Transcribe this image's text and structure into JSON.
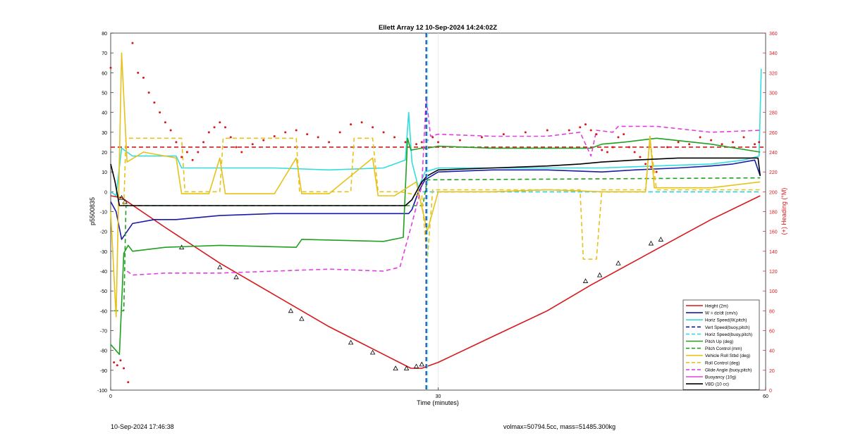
{
  "footer": {
    "timestamp": "10-Sep-2024 17:46:38",
    "summary": "volmax=50794.5cc, mass=51485.300kg"
  },
  "chart_data": {
    "type": "line",
    "title": "Ellett Array 12 10-Sep-2024 14:24:02Z",
    "xlabel": "Time (minutes)",
    "ylabel": "p5500835",
    "y2label": "(+) Heading (°M)",
    "xlim": [
      0,
      60
    ],
    "ylim": [
      -100,
      80
    ],
    "y2lim": [
      0,
      360
    ],
    "xticks": [
      0,
      30,
      60
    ],
    "yticks": [
      -100,
      -90,
      -80,
      -70,
      -60,
      -50,
      -40,
      -30,
      -20,
      -10,
      0,
      10,
      20,
      30,
      40,
      50,
      60,
      70,
      80
    ],
    "y2ticks": [
      0,
      20,
      40,
      60,
      80,
      100,
      120,
      140,
      160,
      180,
      200,
      220,
      240,
      260,
      280,
      300,
      320,
      340,
      360
    ],
    "grid": "vertical at x=30",
    "legend_position": "bottom-right",
    "legend": [
      {
        "label": "Height (2m)",
        "color": "#d7191c",
        "style": "solid"
      },
      {
        "label": "W = dz/dt (cm/s)",
        "color": "#1a1aa8",
        "style": "solid"
      },
      {
        "label": "Horiz Speed(W,pitch)",
        "color": "#33dddd",
        "style": "solid"
      },
      {
        "label": "Vert Speed(buoy,pitch)",
        "color": "#1a1aa8",
        "style": "dashed"
      },
      {
        "label": "Horiz Speed(buoy,pitch)",
        "color": "#33dddd",
        "style": "dashed"
      },
      {
        "label": "Pitch Up (deg)",
        "color": "#20a020",
        "style": "solid"
      },
      {
        "label": "Pitch Control (mm)",
        "color": "#20a020",
        "style": "dashed"
      },
      {
        "label": "Vehicle Roll Stbd (deg)",
        "color": "#e6c21a",
        "style": "solid"
      },
      {
        "label": "Roll Control (deg)",
        "color": "#e6c21a",
        "style": "dashed"
      },
      {
        "label": "Glide Angle (buoy,pitch)",
        "color": "#e040e0",
        "style": "dashed"
      },
      {
        "label": "Buoyancy (10g)",
        "color": "#e040e0",
        "style": "solid"
      },
      {
        "label": "VBD (10 cc)",
        "color": "#000000",
        "style": "solid"
      }
    ],
    "vertical_lines": [
      {
        "x": 28.9,
        "color": "#1a1aa8",
        "style": "dashed"
      },
      {
        "x": 28.9,
        "color": "#33dddd",
        "style": "dashed"
      }
    ],
    "heading_reference": {
      "y2": 245,
      "color": "#d7191c",
      "style": "dashed"
    },
    "series": [
      {
        "name": "Height (2m)",
        "color": "#d7191c",
        "style": "solid",
        "x": [
          0,
          1,
          5,
          10,
          15,
          20,
          25,
          27.5,
          28.5,
          30,
          35,
          40,
          44,
          48,
          52,
          55,
          59.5
        ],
        "y": [
          -2,
          -3,
          -18,
          -36,
          -52,
          -68,
          -82,
          -89,
          -89,
          -86,
          -73,
          -60,
          -47,
          -35,
          -23,
          -14,
          -2
        ]
      },
      {
        "name": "Height markers",
        "color": "#d7191c",
        "marker": "triangle",
        "x": [
          1,
          1.3,
          6.5,
          10,
          11.5,
          16.5,
          17.5,
          22,
          24,
          26.1,
          27.1,
          28,
          28.5,
          43.5,
          44.8,
          46.5,
          49.5,
          50.4
        ],
        "y": [
          -3,
          -5,
          -28,
          -38,
          -43,
          -60,
          -64,
          -76,
          -81,
          -89,
          -89,
          -88,
          -87,
          -45,
          -42,
          -36,
          -26,
          -24
        ]
      },
      {
        "name": "W = dz/dt (cm/s)",
        "color": "#1a1aa8",
        "style": "solid",
        "x": [
          0,
          0.5,
          1,
          2,
          4,
          6,
          10,
          15,
          20,
          25,
          27.3,
          27.6,
          28.2,
          28.8,
          30,
          35,
          40,
          45,
          48,
          52,
          55,
          57,
          59,
          59.5
        ],
        "y": [
          -5,
          -10,
          -24,
          -16,
          -14,
          -14,
          -12,
          -11,
          -11,
          -11,
          -11,
          -9,
          0,
          6,
          10,
          11,
          11,
          10,
          11,
          12,
          13,
          14,
          16,
          8
        ]
      },
      {
        "name": "Horiz Speed(W,pitch)",
        "color": "#33dddd",
        "style": "solid",
        "x": [
          0,
          0.5,
          1,
          2,
          4,
          6,
          6.5,
          10,
          15,
          20,
          25,
          27,
          27.3,
          27.6,
          28.2,
          28.8,
          30,
          35,
          40,
          45,
          50,
          55,
          58,
          59.4,
          59.6
        ],
        "y": [
          0,
          -2,
          22,
          18,
          18,
          18,
          12,
          12,
          12,
          11,
          12,
          16,
          40,
          15,
          2,
          10,
          12,
          12,
          12,
          12,
          13,
          14,
          16,
          18,
          62
        ]
      },
      {
        "name": "Vert Speed(buoy,pitch)",
        "color": "#1a1aa8",
        "style": "dashed",
        "x": [
          28.6,
          59.5
        ],
        "y": [
          0,
          0
        ]
      },
      {
        "name": "Horiz Speed(buoy,pitch)",
        "color": "#33dddd",
        "style": "dashed",
        "x": [
          28.6,
          59.5
        ],
        "y": [
          0,
          0
        ]
      },
      {
        "name": "Pitch Up (deg)",
        "color": "#20a020",
        "style": "solid",
        "x": [
          0,
          0.8,
          1.2,
          1.6,
          2,
          5,
          10,
          17,
          17.5,
          25,
          26.8,
          27.2,
          27.5,
          28.5,
          29,
          30,
          35,
          40,
          44,
          45,
          47,
          50,
          55,
          59.5
        ],
        "y": [
          -77,
          -82,
          -31,
          -27,
          -30,
          -28,
          -27,
          -28,
          -24,
          -25,
          -23,
          27,
          21,
          22,
          22,
          23,
          22,
          22,
          22,
          24,
          25,
          27,
          24,
          20
        ]
      },
      {
        "name": "Pitch Control (mm)",
        "color": "#20a020",
        "style": "dashed",
        "x": [
          0.3,
          1.2,
          1.4,
          27,
          28.6,
          29,
          59.5
        ],
        "y": [
          -60,
          -60,
          -7,
          -7,
          -7,
          6,
          7
        ]
      },
      {
        "name": "Vehicle Roll Stbd (deg)",
        "color": "#e6c21a",
        "style": "solid",
        "x": [
          0,
          0.5,
          1,
          1.5,
          3,
          6,
          6.5,
          9,
          10,
          10.5,
          12,
          15,
          17,
          17.5,
          20,
          24,
          24.5,
          26,
          28,
          29,
          30,
          35,
          40,
          45,
          49,
          49.4,
          49.8,
          55,
          59.5
        ],
        "y": [
          -10,
          -63,
          70,
          15,
          20,
          17,
          -1,
          -1,
          17,
          -1,
          -1,
          -1,
          17,
          -1,
          -1,
          17,
          -2,
          -2,
          5,
          -20,
          0,
          0,
          1,
          0,
          0,
          28,
          2,
          2,
          5
        ]
      },
      {
        "name": "Roll Control (deg)",
        "color": "#e6c21a",
        "style": "dashed",
        "x": [
          1.2,
          1.4,
          6.5,
          6.8,
          10,
          10.3,
          17,
          17.3,
          22,
          22.3,
          24,
          24.5,
          26,
          26.5,
          28.5,
          29,
          29.5,
          43,
          43.3,
          44.5,
          45,
          49,
          49.4,
          50,
          59.5
        ],
        "y": [
          -7,
          27,
          27,
          0,
          0,
          27,
          27,
          0,
          0,
          27,
          27,
          0,
          0,
          0,
          -2,
          -35,
          1,
          1,
          -34,
          -34,
          1,
          1,
          27,
          1,
          1
        ]
      },
      {
        "name": "Glide Angle (buoy,pitch)",
        "color": "#e040e0",
        "style": "dashed",
        "x": [
          1.5,
          2,
          5,
          10,
          15,
          20,
          25,
          26.5,
          27.5,
          28.5,
          28.9,
          29.3,
          30,
          35,
          40,
          43,
          44,
          44.5,
          46,
          46.5,
          50,
          55,
          59.5
        ],
        "y": [
          -40,
          -42,
          -41,
          -41,
          -40,
          -39,
          -40,
          -38,
          -18,
          3,
          48,
          28,
          29,
          28,
          28,
          30,
          18,
          31,
          30,
          33,
          33,
          30,
          31
        ]
      },
      {
        "name": "Buoyancy (10g)",
        "color": "#e040e0",
        "style": "solid",
        "x": [],
        "y": []
      },
      {
        "name": "VBD (10 cc)",
        "color": "#000000",
        "style": "solid",
        "x": [
          0,
          0.4,
          0.8,
          1,
          1.5,
          5,
          10,
          15,
          20,
          25,
          27,
          27.6,
          28,
          28.5,
          29,
          30,
          35,
          40,
          43,
          45,
          48,
          52,
          55,
          59.3,
          59.5
        ],
        "y": [
          14,
          5,
          -7,
          -7,
          -7,
          -7,
          -7,
          -7,
          -7,
          -7,
          -7,
          -4,
          0,
          5,
          8,
          11,
          12,
          13,
          14,
          15,
          16,
          17,
          17,
          17,
          8
        ]
      },
      {
        "name": "Heading (deg M)",
        "axis": "y2",
        "color": "#d7191c",
        "marker": "dot",
        "x": [
          0,
          0.3,
          0.6,
          0.9,
          1.2,
          1.6,
          2,
          2.5,
          3,
          3.5,
          4,
          4.5,
          5,
          5.5,
          6,
          6.5,
          7,
          7.5,
          8,
          8.5,
          9,
          9.5,
          10,
          10.5,
          11,
          11.5,
          12,
          13,
          14,
          15,
          16,
          17,
          18,
          19,
          20,
          21,
          22,
          23,
          24,
          25,
          26,
          27,
          28,
          28.5,
          29,
          29.5,
          30,
          32,
          34,
          36,
          38,
          40,
          42,
          43,
          43.5,
          44,
          44.5,
          45,
          45.5,
          46,
          46.5,
          47,
          47.5,
          48,
          48.5,
          49,
          49.5,
          50,
          51,
          52,
          53,
          54,
          55,
          56,
          57,
          58,
          59,
          59.4
        ],
        "y": [
          325,
          28,
          25,
          30,
          22,
          8,
          350,
          320,
          315,
          300,
          290,
          280,
          270,
          262,
          250,
          235,
          240,
          232,
          240,
          250,
          260,
          265,
          270,
          265,
          255,
          245,
          240,
          248,
          252,
          256,
          260,
          262,
          258,
          255,
          250,
          260,
          268,
          270,
          265,
          260,
          255,
          250,
          248,
          250,
          252,
          255,
          250,
          252,
          255,
          258,
          260,
          262,
          262,
          265,
          268,
          262,
          258,
          242,
          240,
          245,
          255,
          258,
          245,
          240,
          235,
          228,
          225,
          220,
          245,
          250,
          248,
          255,
          252,
          248,
          250,
          255,
          248,
          250
        ]
      }
    ]
  }
}
